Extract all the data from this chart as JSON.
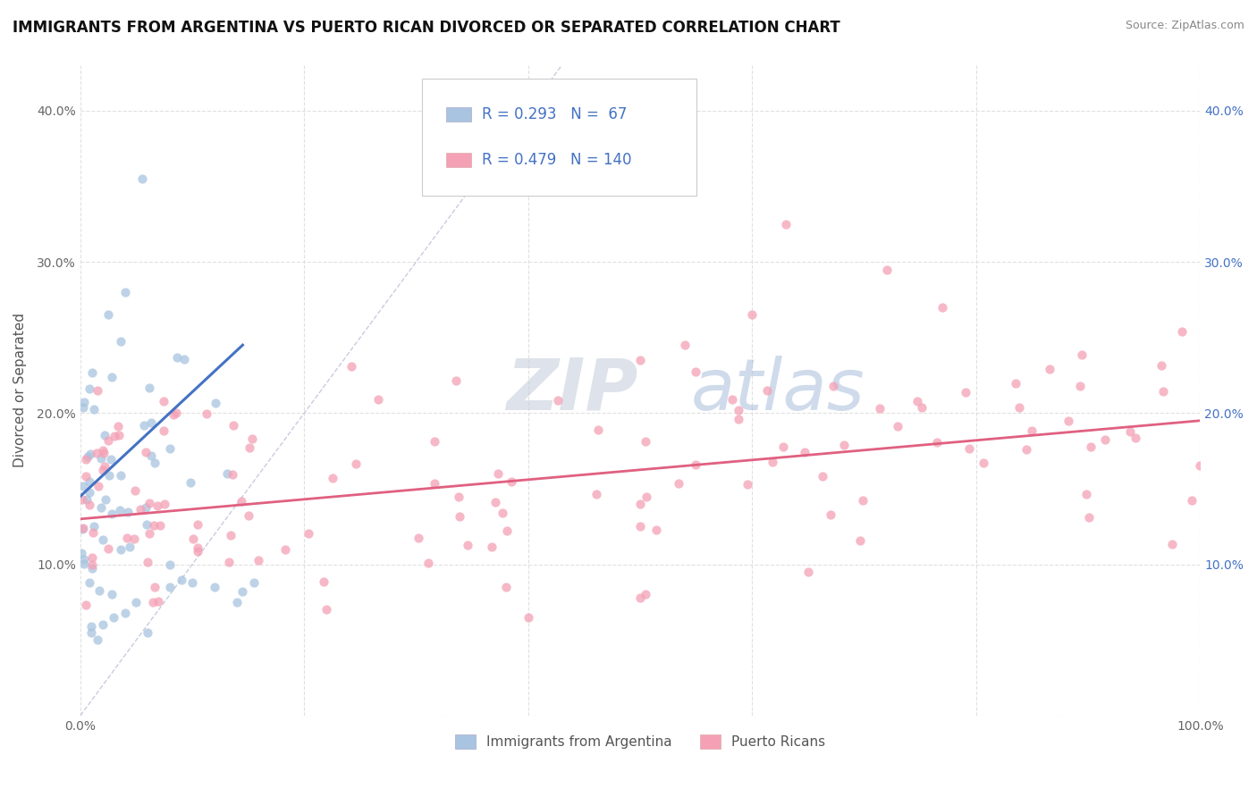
{
  "title": "IMMIGRANTS FROM ARGENTINA VS PUERTO RICAN DIVORCED OR SEPARATED CORRELATION CHART",
  "source": "Source: ZipAtlas.com",
  "xlabel": "",
  "ylabel": "Divorced or Separated",
  "legend_labels": [
    "Immigrants from Argentina",
    "Puerto Ricans"
  ],
  "r_argentina": 0.293,
  "n_argentina": 67,
  "r_puerto_rican": 0.479,
  "n_puerto_rican": 140,
  "xlim": [
    0.0,
    1.0
  ],
  "ylim": [
    0.0,
    0.43
  ],
  "color_argentina": "#a8c4e0",
  "color_puerto_rican": "#f4a0b5",
  "line_color_argentina": "#4472c4",
  "line_color_puerto_rican": "#e06080",
  "diagonal_color": "#b0b8d0",
  "watermark_zip": "ZIP",
  "watermark_atlas": "atlas",
  "background_color": "#ffffff",
  "grid_color": "#dddddd"
}
